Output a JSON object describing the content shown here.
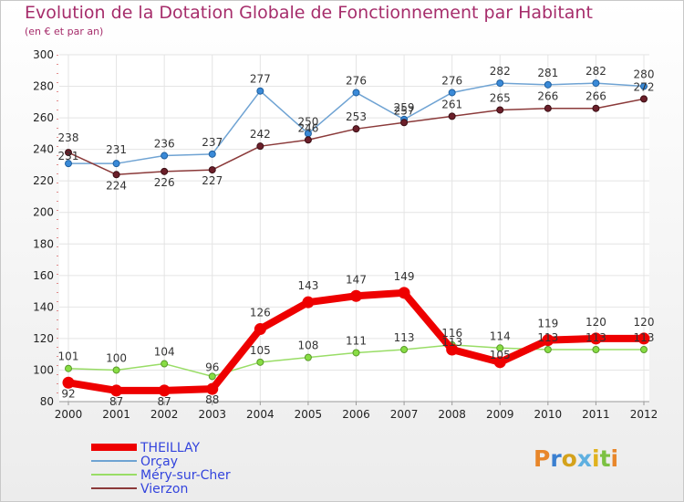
{
  "chart_data": {
    "type": "line",
    "title": "Evolution de la Dotation Globale de Fonctionnement par Habitant",
    "subtitle": "(en € et par an)",
    "xlabel": "",
    "ylabel": "",
    "categories": [
      "2000",
      "2001",
      "2002",
      "2003",
      "2004",
      "2005",
      "2006",
      "2007",
      "2008",
      "2009",
      "2010",
      "2011",
      "2012"
    ],
    "ylim": [
      80,
      300
    ],
    "yticks": [
      80,
      100,
      120,
      140,
      160,
      180,
      200,
      220,
      240,
      260,
      280,
      300
    ],
    "grid": true,
    "legend_position": "bottom-left",
    "series": [
      {
        "name": "THEILLAY",
        "color": "#ee0000",
        "values": [
          92,
          87,
          87,
          88,
          126,
          143,
          147,
          149,
          113,
          105,
          119,
          120,
          120
        ],
        "labels": [
          "92",
          "87",
          "87",
          "88",
          "126",
          "143",
          "147",
          "149",
          "113",
          "105",
          "119",
          "120",
          "120"
        ]
      },
      {
        "name": "Orçay",
        "color": "#6fa3d3",
        "values": [
          231,
          231,
          236,
          237,
          277,
          250,
          276,
          259,
          276,
          282,
          281,
          282,
          280
        ],
        "labels": [
          "231",
          "231",
          "236",
          "237",
          "277",
          "250",
          "276",
          "259",
          "276",
          "282",
          "281",
          "282",
          "280"
        ]
      },
      {
        "name": "Méry-sur-Cher",
        "color": "#99dd66",
        "values": [
          101,
          100,
          104,
          96,
          105,
          108,
          111,
          113,
          116,
          114,
          113,
          113,
          113
        ],
        "labels": [
          "101",
          "100",
          "104",
          "96",
          "105",
          "108",
          "111",
          "113",
          "116",
          "114",
          "113",
          "113",
          "113"
        ]
      },
      {
        "name": "Vierzon",
        "color": "#8b3a3a",
        "values": [
          238,
          224,
          226,
          227,
          242,
          246,
          253,
          257,
          261,
          265,
          266,
          266,
          272
        ],
        "labels": [
          "238",
          "224",
          "226",
          "227",
          "242",
          "246",
          "253",
          "257",
          "261",
          "265",
          "266",
          "266",
          "272"
        ]
      }
    ]
  },
  "brand": {
    "letters": [
      {
        "char": "P",
        "color": "#e8862a"
      },
      {
        "char": "r",
        "color": "#3a7fd0"
      },
      {
        "char": "o",
        "color": "#d4a21b"
      },
      {
        "char": "x",
        "color": "#5fb0e0"
      },
      {
        "char": "i",
        "color": "#e0b21e"
      },
      {
        "char": "t",
        "color": "#7cc142"
      },
      {
        "char": "i",
        "color": "#e8862a"
      }
    ]
  }
}
